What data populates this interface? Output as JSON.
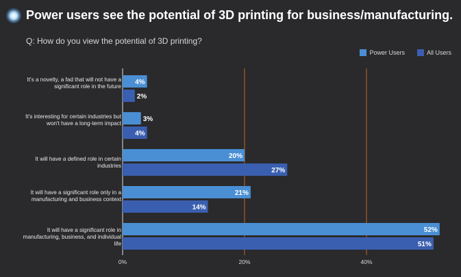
{
  "header": {
    "title": "Power users see the potential of 3D printing for business/manufacturing.",
    "subtitle": "Q: How do you view the potential of 3D printing?"
  },
  "chart_data": {
    "type": "bar",
    "orientation": "horizontal",
    "categories": [
      "It's a novelty, a fad that will not have a significant role in the future",
      "It's interesting for certain industries but won't have a long-term impact",
      "It will have a defined role in certain industries",
      "It will have a significant role only in a manufacturing and business context",
      "It will have a significant role in manufacturing, business, and individual life"
    ],
    "series": [
      {
        "name": "Power Users",
        "values": [
          4,
          3,
          20,
          21,
          52
        ],
        "color": "#4a8fd4"
      },
      {
        "name": "All Users",
        "values": [
          2,
          4,
          27,
          14,
          51
        ],
        "color": "#3a5fb0"
      }
    ],
    "xlim": [
      0,
      55
    ],
    "xticks": [
      0,
      20,
      40
    ],
    "xtick_labels": [
      "0%",
      "20%",
      "40%"
    ],
    "value_suffix": "%",
    "legend_position": "top-right",
    "gridline_color": "#c0651e"
  }
}
